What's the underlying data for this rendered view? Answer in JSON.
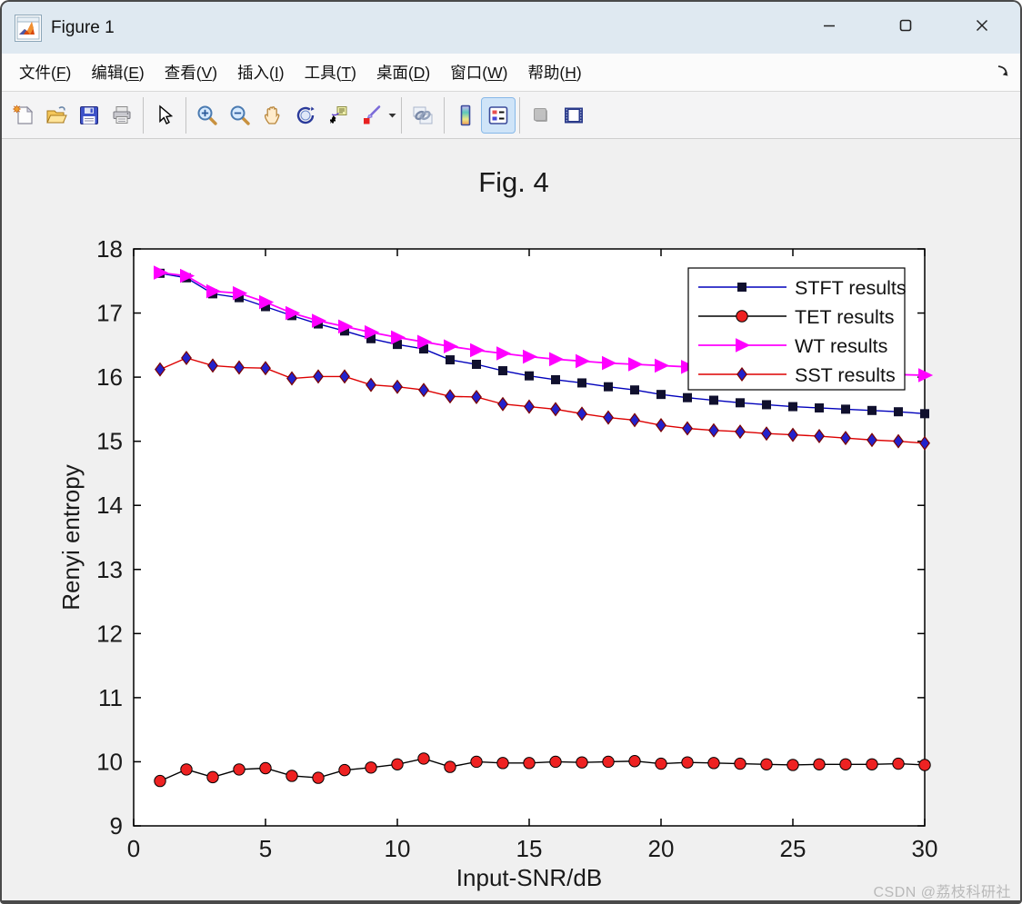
{
  "window": {
    "title": "Figure 1",
    "controls": [
      {
        "name": "minimize-button",
        "icon": "minimize-icon"
      },
      {
        "name": "maximize-button",
        "icon": "maximize-icon"
      },
      {
        "name": "close-button",
        "icon": "close-icon"
      }
    ]
  },
  "menu": {
    "items": [
      {
        "label": "文件(F)"
      },
      {
        "label": "编辑(E)"
      },
      {
        "label": "查看(V)"
      },
      {
        "label": "插入(I)"
      },
      {
        "label": "工具(T)"
      },
      {
        "label": "桌面(D)"
      },
      {
        "label": "窗口(W)"
      },
      {
        "label": "帮助(H)"
      }
    ],
    "dock_icon": "dock-figure-arrow-icon"
  },
  "toolbar": {
    "groups": [
      [
        {
          "name": "new-figure-button",
          "icon": "new-doc-icon"
        },
        {
          "name": "open-file-button",
          "icon": "open-folder-icon"
        },
        {
          "name": "save-figure-button",
          "icon": "save-floppy-icon"
        },
        {
          "name": "print-figure-button",
          "icon": "printer-icon"
        }
      ],
      [
        {
          "name": "edit-plot-button",
          "icon": "cursor-arrow-icon"
        }
      ],
      [
        {
          "name": "zoom-in-button",
          "icon": "zoom-in-icon"
        },
        {
          "name": "zoom-out-button",
          "icon": "zoom-out-icon"
        },
        {
          "name": "pan-button",
          "icon": "hand-icon"
        },
        {
          "name": "rotate-3d-button",
          "icon": "rotate-3d-icon"
        },
        {
          "name": "data-cursor-button",
          "icon": "data-cursor-icon"
        },
        {
          "name": "brush-data-button",
          "icon": "brush-icon",
          "dropdown": true
        }
      ],
      [
        {
          "name": "link-plot-button",
          "icon": "link-chain-icon"
        }
      ],
      [
        {
          "name": "insert-colorbar-button",
          "icon": "colorbar-icon"
        },
        {
          "name": "insert-legend-button",
          "icon": "legend-icon",
          "active": true
        }
      ],
      [
        {
          "name": "hide-plot-tools-button",
          "icon": "gray-square-icon",
          "disabled": true
        },
        {
          "name": "show-plot-tools-button",
          "icon": "plot-tools-icon"
        }
      ]
    ]
  },
  "figure": {
    "watermark": "CSDN @荔枝科研社"
  },
  "chart_data": {
    "type": "line",
    "title": "Fig. 4",
    "xlabel": "Input-SNR/dB",
    "ylabel": "Renyi entropy",
    "xlim": [
      0,
      30
    ],
    "ylim": [
      9,
      18
    ],
    "xticks": [
      0,
      5,
      10,
      15,
      20,
      25,
      30
    ],
    "yticks": [
      9,
      10,
      11,
      12,
      13,
      14,
      15,
      16,
      17,
      18
    ],
    "grid": false,
    "legend_position": "upper-right",
    "x": [
      1,
      2,
      3,
      4,
      5,
      6,
      7,
      8,
      9,
      10,
      11,
      12,
      13,
      14,
      15,
      16,
      17,
      18,
      19,
      20,
      21,
      22,
      23,
      24,
      25,
      26,
      27,
      28,
      29,
      30
    ],
    "series": [
      {
        "name": "STFT results",
        "line_color": "#0000bb",
        "marker": "square",
        "marker_color": "#10102e",
        "values": [
          17.62,
          17.55,
          17.3,
          17.24,
          17.1,
          16.96,
          16.83,
          16.72,
          16.6,
          16.51,
          16.44,
          16.27,
          16.2,
          16.1,
          16.02,
          15.96,
          15.91,
          15.85,
          15.8,
          15.73,
          15.68,
          15.64,
          15.6,
          15.57,
          15.54,
          15.52,
          15.5,
          15.48,
          15.46,
          15.43
        ]
      },
      {
        "name": "TET results",
        "line_color": "#000000",
        "marker": "circle",
        "marker_color": "#ee2222",
        "values": [
          9.7,
          9.88,
          9.76,
          9.88,
          9.9,
          9.78,
          9.75,
          9.87,
          9.91,
          9.96,
          10.05,
          9.92,
          10.0,
          9.98,
          9.98,
          10.0,
          9.99,
          10.0,
          10.01,
          9.97,
          9.99,
          9.98,
          9.97,
          9.96,
          9.95,
          9.96,
          9.96,
          9.96,
          9.97,
          9.95
        ]
      },
      {
        "name": "WT results",
        "line_color": "#ff00ff",
        "marker": "triangle-right",
        "marker_color": "#ff00ff",
        "values": [
          17.63,
          17.58,
          17.34,
          17.31,
          17.17,
          17.0,
          16.88,
          16.79,
          16.7,
          16.62,
          16.55,
          16.48,
          16.42,
          16.37,
          16.32,
          16.28,
          16.25,
          16.22,
          16.2,
          16.18,
          16.16,
          16.14,
          16.12,
          16.1,
          16.09,
          16.07,
          16.06,
          16.05,
          16.04,
          16.03
        ]
      },
      {
        "name": "SST results",
        "line_color": "#dd0000",
        "marker": "diamond",
        "marker_color": "#2222cc",
        "values": [
          16.12,
          16.3,
          16.18,
          16.15,
          16.14,
          15.98,
          16.01,
          16.01,
          15.88,
          15.85,
          15.8,
          15.7,
          15.69,
          15.58,
          15.54,
          15.5,
          15.43,
          15.37,
          15.33,
          15.25,
          15.2,
          15.17,
          15.15,
          15.12,
          15.1,
          15.08,
          15.05,
          15.02,
          15.0,
          14.97
        ]
      }
    ]
  }
}
